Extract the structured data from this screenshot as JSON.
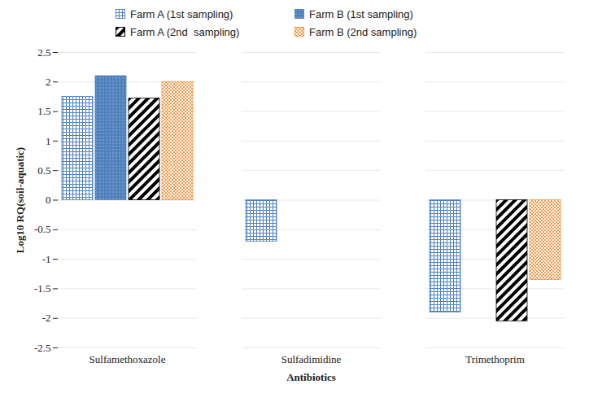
{
  "chart_data": {
    "type": "bar",
    "categories": [
      "Sulfamethoxazole",
      "Sulfadimidine",
      "Trimethoprim"
    ],
    "series": [
      {
        "name": "Farm A (1st sampling)",
        "color": "#4f81bd",
        "values": [
          1.75,
          -0.7,
          -1.9
        ]
      },
      {
        "name": "Farm B (1st sampling)",
        "color": "#4f81bd",
        "values": [
          2.1,
          null,
          null
        ]
      },
      {
        "name": "Farm A (2nd  sampling)",
        "color": "#000000",
        "values": [
          1.72,
          null,
          -2.05
        ]
      },
      {
        "name": "Farm B (2nd sampling)",
        "color": "#f79646",
        "values": [
          2.0,
          null,
          -1.35
        ]
      }
    ],
    "xlabel": "Antibiotics",
    "ylabel": "Log10 RQ(soil-aquatic)",
    "ylim": [
      -2.5,
      2.5
    ],
    "yticks": [
      -2.5,
      -2,
      -1.5,
      -1,
      -0.5,
      0,
      0.5,
      1,
      1.5,
      2,
      2.5
    ],
    "grid": true,
    "legend": "top"
  }
}
